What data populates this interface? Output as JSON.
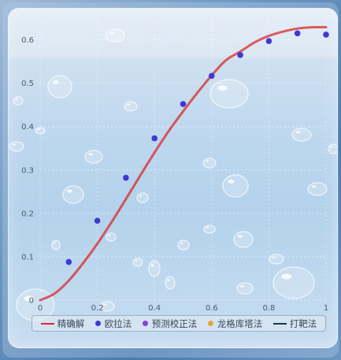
{
  "chart_data": {
    "type": "line",
    "x_ticks": [
      "0",
      "0.2",
      "0.4",
      "0.6",
      "0.8",
      "1"
    ],
    "y_ticks": [
      "0",
      "0.1",
      "0.2",
      "0.3",
      "0.4",
      "0.5",
      "0.6"
    ],
    "xlim": [
      0,
      1
    ],
    "ylim": [
      0,
      0.65
    ],
    "grid": true,
    "legend_placement": "bottom",
    "series": [
      {
        "name": "精确解",
        "kind": "line",
        "color": "#d9292b",
        "x": [
          0,
          0.05,
          0.1,
          0.15,
          0.2,
          0.25,
          0.3,
          0.35,
          0.4,
          0.45,
          0.5,
          0.55,
          0.6,
          0.65,
          0.7,
          0.75,
          0.8,
          0.85,
          0.9,
          0.95,
          1.0
        ],
        "y": [
          0,
          0.015,
          0.045,
          0.085,
          0.13,
          0.18,
          0.233,
          0.287,
          0.34,
          0.39,
          0.435,
          0.478,
          0.518,
          0.553,
          0.573,
          0.594,
          0.609,
          0.619,
          0.626,
          0.629,
          0.629
        ]
      },
      {
        "name": "欧拉法",
        "kind": "scatter",
        "color": "#3d3ad4",
        "x": [
          0.1,
          0.2,
          0.3,
          0.4,
          0.5,
          0.6,
          0.7,
          0.8,
          0.9,
          1.0
        ],
        "y": [
          0.088,
          0.183,
          0.282,
          0.373,
          0.452,
          0.517,
          0.565,
          0.597,
          0.615,
          0.612
        ]
      },
      {
        "name": "预测校正法",
        "kind": "scatter",
        "color": "#8f3fd9",
        "x": [],
        "y": []
      },
      {
        "name": "龙格库塔法",
        "kind": "scatter",
        "color": "#e8a33a",
        "x": [],
        "y": []
      },
      {
        "name": "打靶法",
        "kind": "line",
        "color": "#123a4a",
        "x": [],
        "y": []
      }
    ]
  }
}
